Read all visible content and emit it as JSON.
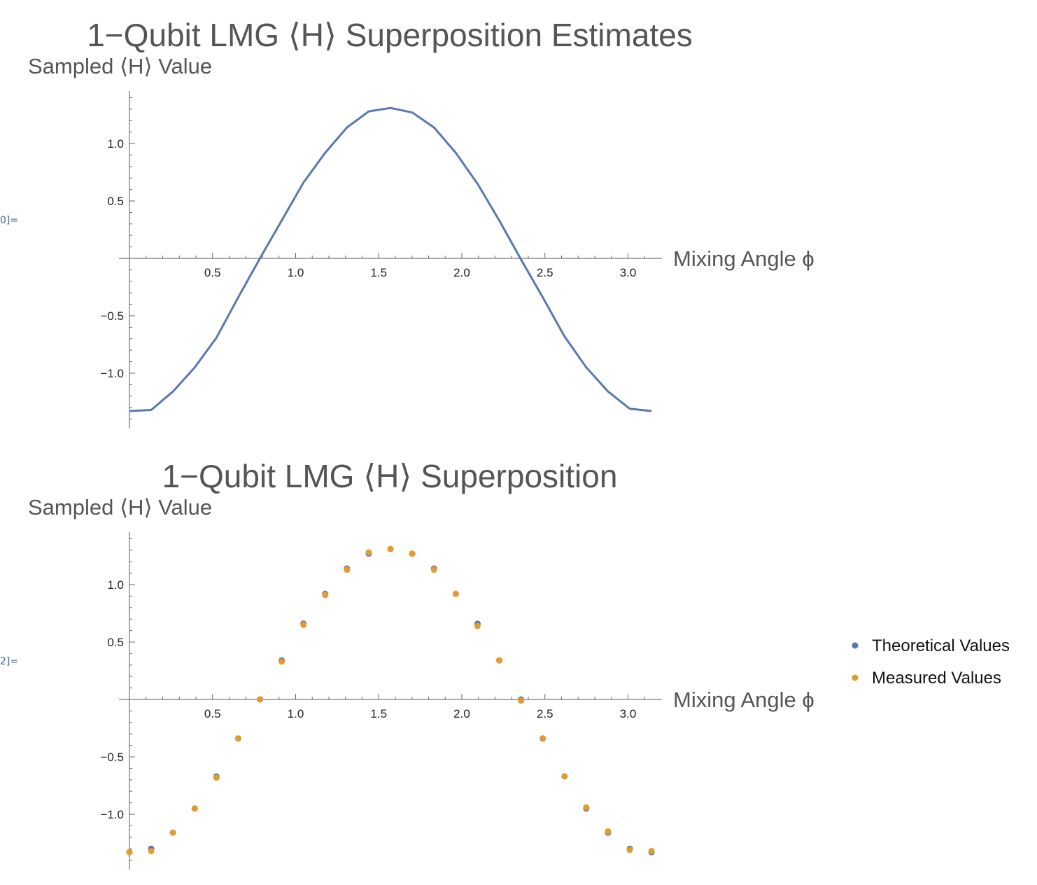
{
  "cells": [
    "0]=",
    "2]="
  ],
  "colors": {
    "theoretical": "#5878b0",
    "measured": "#e19b2e",
    "axis": "#555555"
  },
  "chart_data": [
    {
      "type": "line",
      "title": "1−Qubit LMG ⟨H⟩ Superposition Estimates",
      "ylabel": "Sampled ⟨H⟩ Value",
      "xlabel": "Mixing Angle ϕ",
      "xlim": [
        0,
        3.2
      ],
      "ylim": [
        -1.45,
        1.45
      ],
      "xticks": [
        0.5,
        1.0,
        1.5,
        2.0,
        2.5,
        3.0
      ],
      "xtick_labels": [
        "0.5",
        "1.0",
        "1.5",
        "2.0",
        "2.5",
        "3.0"
      ],
      "yticks": [
        -1.0,
        -0.5,
        0.5,
        1.0
      ],
      "ytick_labels": [
        "−1.0",
        "−0.5",
        "0.5",
        "1.0"
      ],
      "series": [
        {
          "x": [
            0,
            0.1309,
            0.2618,
            0.3927,
            0.5236,
            0.6545,
            0.7854,
            0.9163,
            1.0472,
            1.1781,
            1.309,
            1.4399,
            1.5708,
            1.7017,
            1.8326,
            1.9635,
            2.0944,
            2.2253,
            2.3562,
            2.4871,
            2.618,
            2.7489,
            2.8798,
            3.0107,
            3.1416
          ],
          "y": [
            -1.33,
            -1.32,
            -1.16,
            -0.95,
            -0.69,
            -0.34,
            0.0,
            0.33,
            0.66,
            0.92,
            1.14,
            1.28,
            1.31,
            1.27,
            1.14,
            0.92,
            0.65,
            0.33,
            -0.01,
            -0.34,
            -0.68,
            -0.95,
            -1.16,
            -1.31,
            -1.33
          ]
        }
      ]
    },
    {
      "type": "scatter",
      "title": "1−Qubit LMG ⟨H⟩ Superposition",
      "ylabel": "Sampled ⟨H⟩ Value",
      "xlabel": "Mixing Angle ϕ",
      "xlim": [
        0,
        3.2
      ],
      "ylim": [
        -1.45,
        1.45
      ],
      "xticks": [
        0.5,
        1.0,
        1.5,
        2.0,
        2.5,
        3.0
      ],
      "xtick_labels": [
        "0.5",
        "1.0",
        "1.5",
        "2.0",
        "2.5",
        "3.0"
      ],
      "yticks": [
        -1.0,
        -0.5,
        0.5,
        1.0
      ],
      "ytick_labels": [
        "−1.0",
        "−0.5",
        "0.5",
        "1.0"
      ],
      "legend": "right",
      "series": [
        {
          "name": "Theoretical Values",
          "x": [
            0,
            0.1309,
            0.2618,
            0.3927,
            0.5236,
            0.6545,
            0.7854,
            0.9163,
            1.0472,
            1.1781,
            1.309,
            1.4399,
            1.5708,
            1.7017,
            1.8326,
            1.9635,
            2.0944,
            2.2253,
            2.3562,
            2.4871,
            2.618,
            2.7489,
            2.8798,
            3.0107,
            3.1416
          ],
          "y": [
            -1.33,
            -1.3,
            -1.16,
            -0.95,
            -0.67,
            -0.34,
            0.0,
            0.34,
            0.66,
            0.92,
            1.14,
            1.27,
            1.31,
            1.27,
            1.14,
            0.92,
            0.66,
            0.34,
            0.0,
            -0.34,
            -0.67,
            -0.95,
            -1.16,
            -1.3,
            -1.33
          ]
        },
        {
          "name": "Measured Values",
          "x": [
            0,
            0.1309,
            0.2618,
            0.3927,
            0.5236,
            0.6545,
            0.7854,
            0.9163,
            1.0472,
            1.1781,
            1.309,
            1.4399,
            1.5708,
            1.7017,
            1.8326,
            1.9635,
            2.0944,
            2.2253,
            2.3562,
            2.4871,
            2.618,
            2.7489,
            2.8798,
            3.0107,
            3.1416
          ],
          "y": [
            -1.33,
            -1.32,
            -1.16,
            -0.95,
            -0.68,
            -0.34,
            0.0,
            0.33,
            0.65,
            0.91,
            1.13,
            1.28,
            1.31,
            1.27,
            1.13,
            0.92,
            0.64,
            0.34,
            -0.01,
            -0.34,
            -0.67,
            -0.94,
            -1.15,
            -1.31,
            -1.32
          ]
        }
      ]
    }
  ]
}
